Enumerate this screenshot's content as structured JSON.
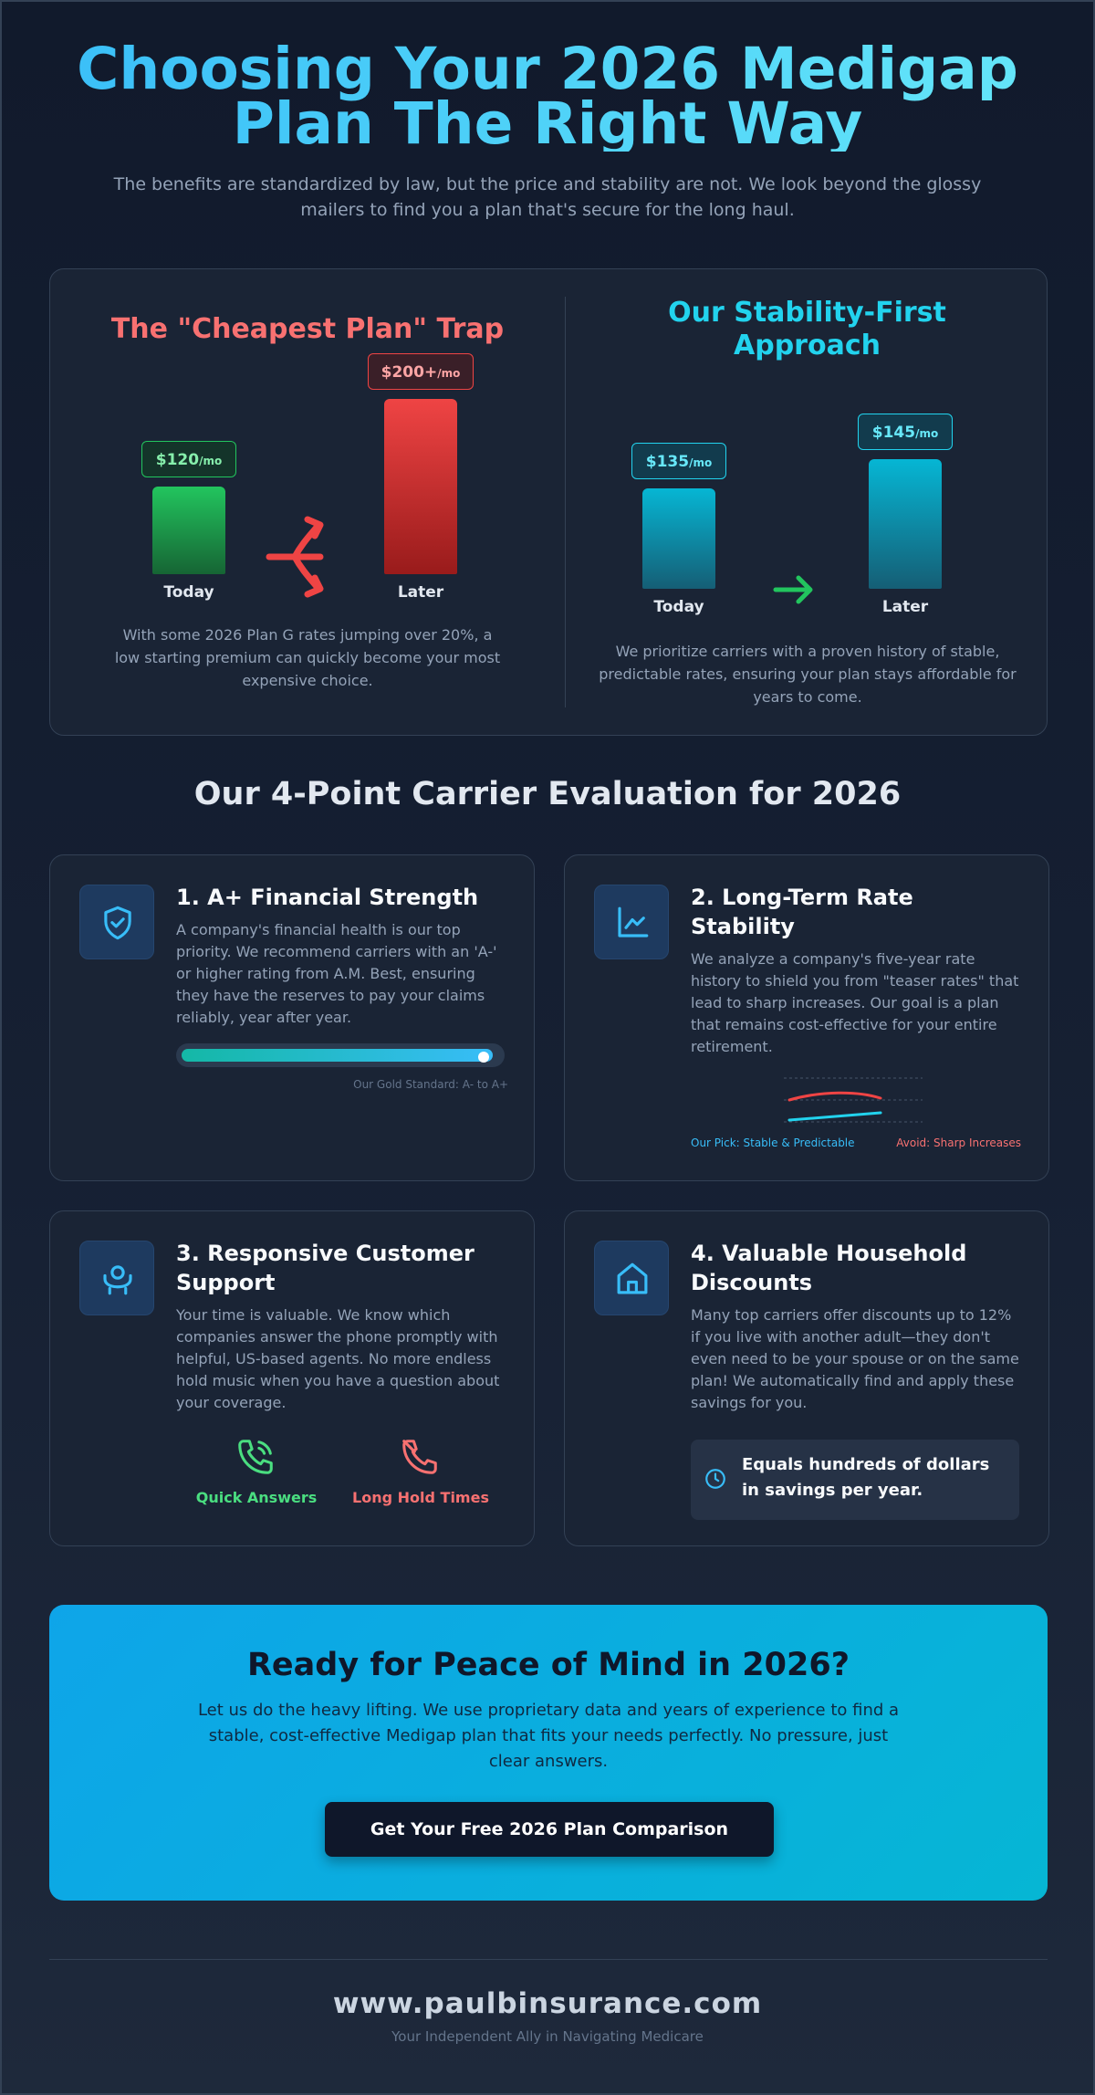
{
  "header": {
    "title_line1": "Choosing Your 2026 Medigap",
    "title_line2": "Plan The Right Way",
    "subtitle": "The benefits are standardized by law, but the price and stability are not. We look beyond the glossy mailers to find you a plan that's secure for the long haul."
  },
  "comparison": {
    "left": {
      "title": "The \"Cheapest Plan\" Trap",
      "today_price": "$120",
      "later_price": "$200+",
      "unit": "/mo",
      "today_label": "Today",
      "later_label": "Later",
      "description": "With some 2026 Plan G rates jumping over 20%, a low starting premium can quickly become your most expensive choice."
    },
    "right": {
      "title_line1": "Our Stability-First",
      "title_line2": "Approach",
      "today_price": "$135",
      "later_price": "$145",
      "unit": "/mo",
      "today_label": "Today",
      "later_label": "Later",
      "description": "We prioritize carriers with a proven history of stable, predictable rates, ensuring your plan stays affordable for years to come."
    }
  },
  "evaluation": {
    "heading": "Our 4-Point Carrier Evaluation for 2026",
    "cards": [
      {
        "icon": "shield-check-icon",
        "title": "1. A+ Financial Strength",
        "body": "A company's financial health is our top priority. We recommend carriers with an 'A-' or higher rating from A.M. Best, ensuring they have the reserves to pay your claims reliably, year after year.",
        "progress_percent": 98,
        "caption": "Our Gold Standard: A- to A+"
      },
      {
        "icon": "chart-line-icon",
        "title": "2. Long-Term Rate Stability",
        "body": "We analyze a company's five-year rate history to shield you from \"teaser rates\" that lead to sharp increases. Our goal is a plan that remains cost-effective for your entire retirement.",
        "legend_good": "Our Pick: Stable & Predictable",
        "legend_bad": "Avoid: Sharp Increases"
      },
      {
        "icon": "support-person-icon",
        "title": "3. Responsive Customer Support",
        "body": "Your time is valuable. We know which companies answer the phone promptly with helpful, US-based agents. No more endless hold music when you have a question about your coverage.",
        "good_label": "Quick Answers",
        "bad_label": "Long Hold Times"
      },
      {
        "icon": "home-icon",
        "title": "4. Valuable Household Discounts",
        "body": "Many top carriers offer discounts up to 12% if you live with another adult—they don't even need to be your spouse or on the same plan! We automatically find and apply these savings for you.",
        "highlight": "Equals hundreds of dollars in savings per year."
      }
    ]
  },
  "cta": {
    "title": "Ready for Peace of Mind in 2026?",
    "body": "Let us do the heavy lifting. We use proprietary data and years of experience to find a stable, cost-effective Medigap plan that fits your needs perfectly. No pressure, just clear answers.",
    "button": "Get Your Free 2026 Plan Comparison"
  },
  "footer": {
    "url": "www.paulbinsurance.com",
    "tagline": "Your Independent Ally in Navigating Medicare"
  },
  "colors": {
    "accent": "#38bdf8",
    "danger": "#f87171",
    "success": "#22c55e",
    "background": "#0f172a"
  }
}
